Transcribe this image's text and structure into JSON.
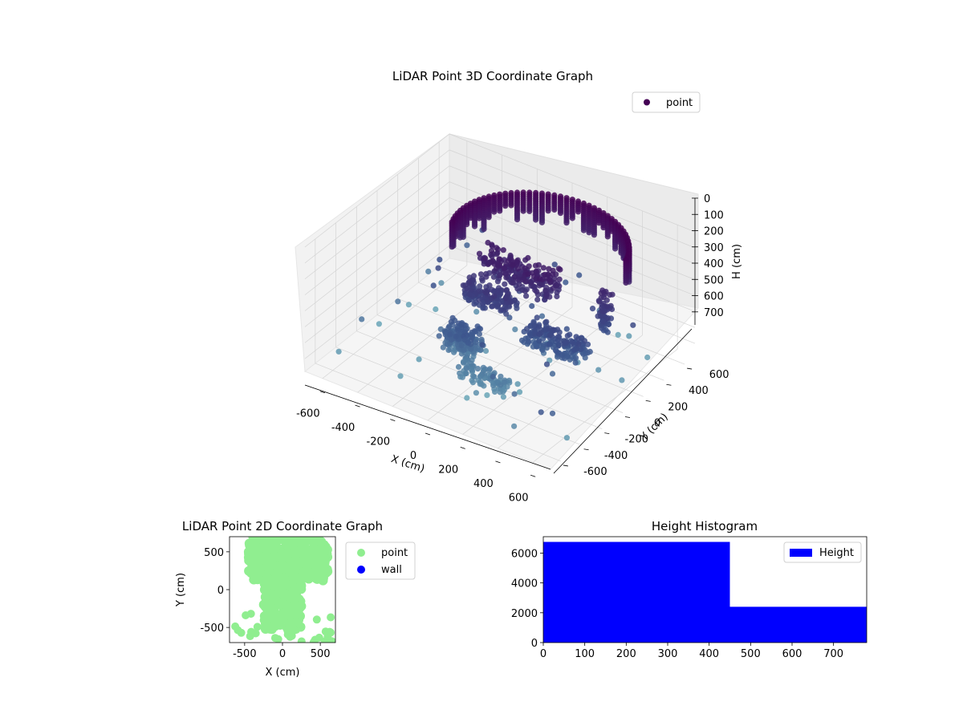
{
  "chart_data": [
    {
      "type": "scatter3d",
      "title": "LiDAR Point 3D Coordinate Graph",
      "xlabel": "X (cm)",
      "ylabel": "Y (cm)",
      "zlabel": "H (cm)",
      "xlim": [
        -700,
        700
      ],
      "ylim": [
        -700,
        700
      ],
      "zlim": [
        0,
        780
      ],
      "z_inverted": true,
      "x_ticks": [
        "-600",
        "-400",
        "-200",
        "0",
        "200",
        "400",
        "600"
      ],
      "y_ticks": [
        "-600",
        "-400",
        "-200",
        "0",
        "200",
        "400",
        "600"
      ],
      "z_ticks": [
        "0",
        "100",
        "200",
        "300",
        "400",
        "500",
        "600",
        "700"
      ],
      "legend": {
        "position": "top-right",
        "entries": [
          {
            "label": "point",
            "color": "#440154"
          }
        ]
      },
      "colors": {
        "low": "#440154",
        "mid": "#3b528b",
        "high": "#6aa8b8"
      }
    },
    {
      "type": "scatter",
      "title": "LiDAR Point 2D Coordinate Graph",
      "xlabel": "X (cm)",
      "ylabel": "Y (cm)",
      "xlim": [
        -700,
        700
      ],
      "ylim": [
        -700,
        700
      ],
      "x_ticks": [
        "-500",
        "0",
        "500"
      ],
      "y_ticks": [
        "-500",
        "0",
        "500"
      ],
      "legend": {
        "position": "outside-right",
        "entries": [
          {
            "label": "point",
            "color": "#90ee90"
          },
          {
            "label": "wall",
            "color": "#0000ff"
          }
        ]
      }
    },
    {
      "type": "bar",
      "title": "Height Histogram",
      "bins": [
        [
          0,
          450
        ],
        [
          450,
          780
        ]
      ],
      "values": [
        6750,
        2400
      ],
      "xlim": [
        0,
        780
      ],
      "ylim": [
        0,
        7100
      ],
      "x_ticks": [
        "0",
        "100",
        "200",
        "300",
        "400",
        "500",
        "600",
        "700"
      ],
      "y_ticks": [
        "0",
        "2000",
        "4000",
        "6000"
      ],
      "color": "#0000ff",
      "legend": {
        "position": "top-right",
        "entries": [
          {
            "label": "Height",
            "color": "#0000ff"
          }
        ]
      }
    }
  ]
}
